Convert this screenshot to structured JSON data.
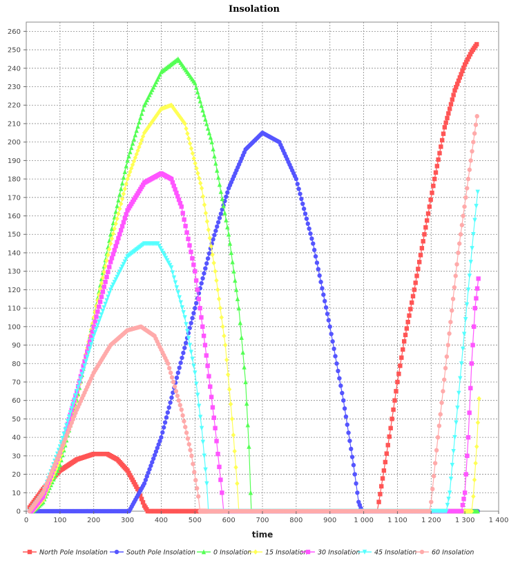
{
  "chart_data": {
    "type": "scatter",
    "title": "Insolation",
    "xlabel": "time",
    "ylabel": "",
    "xlim": [
      0,
      1400
    ],
    "ylim": [
      0,
      265
    ],
    "x_ticks": [
      0,
      100,
      200,
      300,
      400,
      500,
      600,
      700,
      800,
      900,
      1000,
      1100,
      1200,
      1300,
      1400
    ],
    "x_tick_labels": [
      "0",
      "100",
      "200",
      "300",
      "400",
      "500",
      "600",
      "700",
      "800",
      "900",
      "1 000",
      "1 100",
      "1 200",
      "1 300",
      "1 400"
    ],
    "y_ticks": [
      0,
      10,
      20,
      30,
      40,
      50,
      60,
      70,
      80,
      90,
      100,
      110,
      120,
      130,
      140,
      150,
      160,
      170,
      180,
      190,
      200,
      210,
      220,
      230,
      240,
      250,
      260
    ],
    "grid": true,
    "legend_position": "bottom",
    "series": [
      {
        "name": "North Pole Insolation",
        "color": "#ff5555",
        "marker": "square",
        "points": [
          [
            10,
            2
          ],
          [
            50,
            12
          ],
          [
            100,
            22
          ],
          [
            150,
            28
          ],
          [
            200,
            31
          ],
          [
            240,
            31
          ],
          [
            270,
            28
          ],
          [
            300,
            22
          ],
          [
            330,
            12
          ],
          [
            350,
            3
          ],
          [
            360,
            0
          ],
          [
            700,
            0
          ],
          [
            1000,
            0
          ],
          [
            1040,
            0
          ],
          [
            1045,
            5
          ],
          [
            1060,
            22
          ],
          [
            1080,
            45
          ],
          [
            1100,
            70
          ],
          [
            1120,
            92
          ],
          [
            1150,
            120
          ],
          [
            1180,
            150
          ],
          [
            1210,
            180
          ],
          [
            1240,
            208
          ],
          [
            1270,
            228
          ],
          [
            1300,
            242
          ],
          [
            1320,
            249
          ],
          [
            1335,
            253
          ]
        ]
      },
      {
        "name": "South Pole Insolation",
        "color": "#5555ff",
        "marker": "circle",
        "points": [
          [
            10,
            0
          ],
          [
            100,
            0
          ],
          [
            200,
            0
          ],
          [
            305,
            0
          ],
          [
            320,
            5
          ],
          [
            350,
            15
          ],
          [
            400,
            40
          ],
          [
            450,
            75
          ],
          [
            500,
            110
          ],
          [
            550,
            145
          ],
          [
            600,
            175
          ],
          [
            650,
            196
          ],
          [
            700,
            205
          ],
          [
            750,
            200
          ],
          [
            800,
            180
          ],
          [
            850,
            145
          ],
          [
            900,
            100
          ],
          [
            940,
            60
          ],
          [
            970,
            25
          ],
          [
            985,
            5
          ],
          [
            995,
            0
          ],
          [
            1100,
            0
          ],
          [
            1200,
            0
          ],
          [
            1338,
            0
          ]
        ]
      },
      {
        "name": "0 Insolation",
        "color": "#55ff55",
        "marker": "triangle-up",
        "points": [
          [
            20,
            0
          ],
          [
            50,
            5
          ],
          [
            100,
            25
          ],
          [
            150,
            60
          ],
          [
            200,
            105
          ],
          [
            250,
            150
          ],
          [
            300,
            190
          ],
          [
            350,
            220
          ],
          [
            400,
            238
          ],
          [
            450,
            245
          ],
          [
            500,
            232
          ],
          [
            550,
            200
          ],
          [
            600,
            150
          ],
          [
            630,
            110
          ],
          [
            650,
            70
          ],
          [
            660,
            35
          ],
          [
            665,
            10
          ],
          [
            667,
            0
          ],
          [
            1338,
            0
          ]
        ]
      },
      {
        "name": "15 Insolation",
        "color": "#ffff55",
        "marker": "diamond",
        "points": [
          [
            20,
            0
          ],
          [
            50,
            6
          ],
          [
            100,
            28
          ],
          [
            150,
            62
          ],
          [
            200,
            105
          ],
          [
            250,
            145
          ],
          [
            300,
            180
          ],
          [
            350,
            205
          ],
          [
            400,
            218
          ],
          [
            430,
            220
          ],
          [
            470,
            210
          ],
          [
            520,
            175
          ],
          [
            560,
            130
          ],
          [
            590,
            90
          ],
          [
            610,
            50
          ],
          [
            625,
            15
          ],
          [
            630,
            0
          ],
          [
            1320,
            0
          ],
          [
            1325,
            8
          ],
          [
            1335,
            35
          ],
          [
            1342,
            61
          ]
        ]
      },
      {
        "name": "30 Insolation",
        "color": "#ff55ff",
        "marker": "square",
        "points": [
          [
            15,
            0
          ],
          [
            50,
            8
          ],
          [
            100,
            32
          ],
          [
            150,
            65
          ],
          [
            200,
            100
          ],
          [
            250,
            135
          ],
          [
            300,
            163
          ],
          [
            350,
            178
          ],
          [
            400,
            183
          ],
          [
            430,
            180
          ],
          [
            460,
            165
          ],
          [
            500,
            130
          ],
          [
            530,
            90
          ],
          [
            560,
            45
          ],
          [
            580,
            10
          ],
          [
            585,
            0
          ],
          [
            1290,
            0
          ],
          [
            1300,
            10
          ],
          [
            1310,
            40
          ],
          [
            1320,
            80
          ],
          [
            1330,
            110
          ],
          [
            1340,
            126
          ]
        ]
      },
      {
        "name": "45 Insolation",
        "color": "#55ffff",
        "marker": "triangle-down",
        "points": [
          [
            10,
            0
          ],
          [
            50,
            10
          ],
          [
            100,
            35
          ],
          [
            150,
            65
          ],
          [
            200,
            95
          ],
          [
            250,
            120
          ],
          [
            300,
            138
          ],
          [
            350,
            145
          ],
          [
            390,
            145
          ],
          [
            430,
            132
          ],
          [
            470,
            105
          ],
          [
            500,
            75
          ],
          [
            520,
            45
          ],
          [
            535,
            15
          ],
          [
            540,
            0
          ],
          [
            1245,
            0
          ],
          [
            1255,
            10
          ],
          [
            1270,
            40
          ],
          [
            1290,
            80
          ],
          [
            1310,
            120
          ],
          [
            1325,
            150
          ],
          [
            1338,
            173
          ]
        ]
      },
      {
        "name": "60 Insolation",
        "color": "#ffaaaa",
        "marker": "circle",
        "points": [
          [
            10,
            0
          ],
          [
            50,
            10
          ],
          [
            100,
            32
          ],
          [
            150,
            55
          ],
          [
            200,
            75
          ],
          [
            250,
            90
          ],
          [
            300,
            98
          ],
          [
            340,
            100
          ],
          [
            380,
            95
          ],
          [
            420,
            80
          ],
          [
            460,
            55
          ],
          [
            490,
            30
          ],
          [
            510,
            8
          ],
          [
            515,
            0
          ],
          [
            1195,
            0
          ],
          [
            1200,
            5
          ],
          [
            1220,
            40
          ],
          [
            1250,
            90
          ],
          [
            1280,
            140
          ],
          [
            1310,
            180
          ],
          [
            1325,
            200
          ],
          [
            1336,
            214
          ]
        ]
      }
    ]
  }
}
